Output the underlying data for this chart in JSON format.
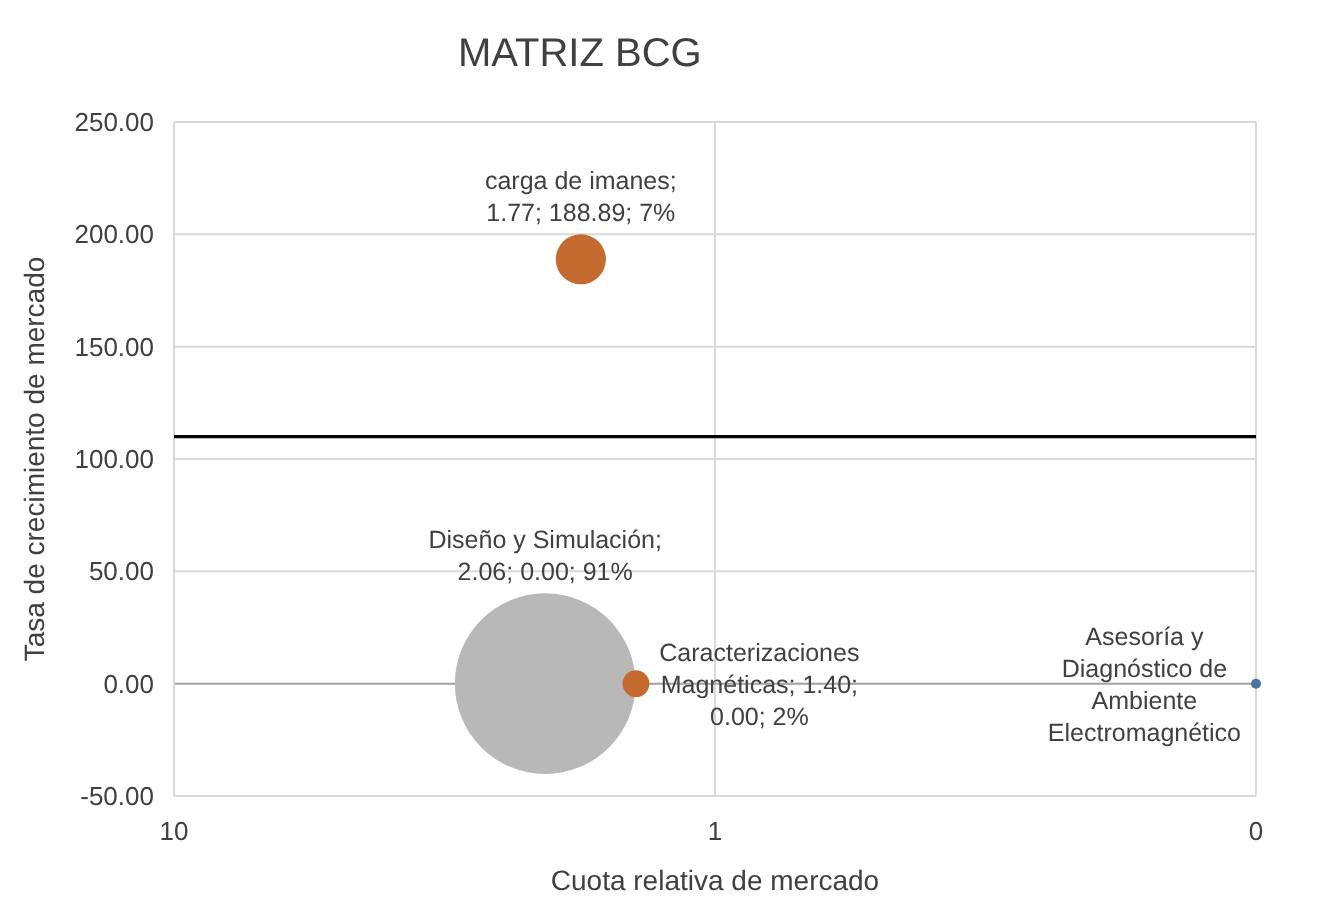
{
  "chart_data": {
    "type": "bubble",
    "title": "MATRIZ BCG",
    "xlabel": "Cuota relativa de mercado",
    "ylabel": "Tasa de crecimiento de mercado",
    "log": "x",
    "grid": true,
    "xlim": [
      10,
      0.1
    ],
    "xticks": [
      10,
      1,
      {
        "value": 0.1,
        "label": "0"
      }
    ],
    "ylim": [
      -50,
      250
    ],
    "yticks": [
      {
        "value": -50,
        "label": "-50.00"
      },
      {
        "value": 0,
        "label": "0.00"
      },
      {
        "value": 50,
        "label": "50.00"
      },
      {
        "value": 100,
        "label": "100.00"
      },
      {
        "value": 150,
        "label": "150.00"
      },
      {
        "value": 200,
        "label": "200.00"
      },
      {
        "value": 250,
        "label": "250.00"
      }
    ],
    "ref_lines": [
      {
        "axis": "y",
        "value": 110,
        "color": "#000000"
      }
    ],
    "series": [
      {
        "x": [
          1.77,
          2.06,
          1.4
        ],
        "values": [
          188.89,
          0,
          0
        ],
        "sizes": [
          0.077,
          1,
          0.022
        ],
        "colors": [
          "#c46a2e",
          "#b8b8b8",
          "#c46a2e"
        ],
        "value_labels": [
          "carga de imanes;\n1.77; 188.89; 7%",
          "Diseño y Simulación;\n2.06; 0.00; 91%",
          "Caracterizaciones\nMagnéticas; 1.40;\n0.00; 2%"
        ]
      },
      {
        "type": "scatter",
        "marker": "circle",
        "x": [
          0.1
        ],
        "values": [
          0
        ],
        "color": "#4f71a0",
        "value_labels": [
          "Asesoría y\nDiagnóstico de\nAmbiente\nElectromagnético"
        ]
      }
    ]
  }
}
